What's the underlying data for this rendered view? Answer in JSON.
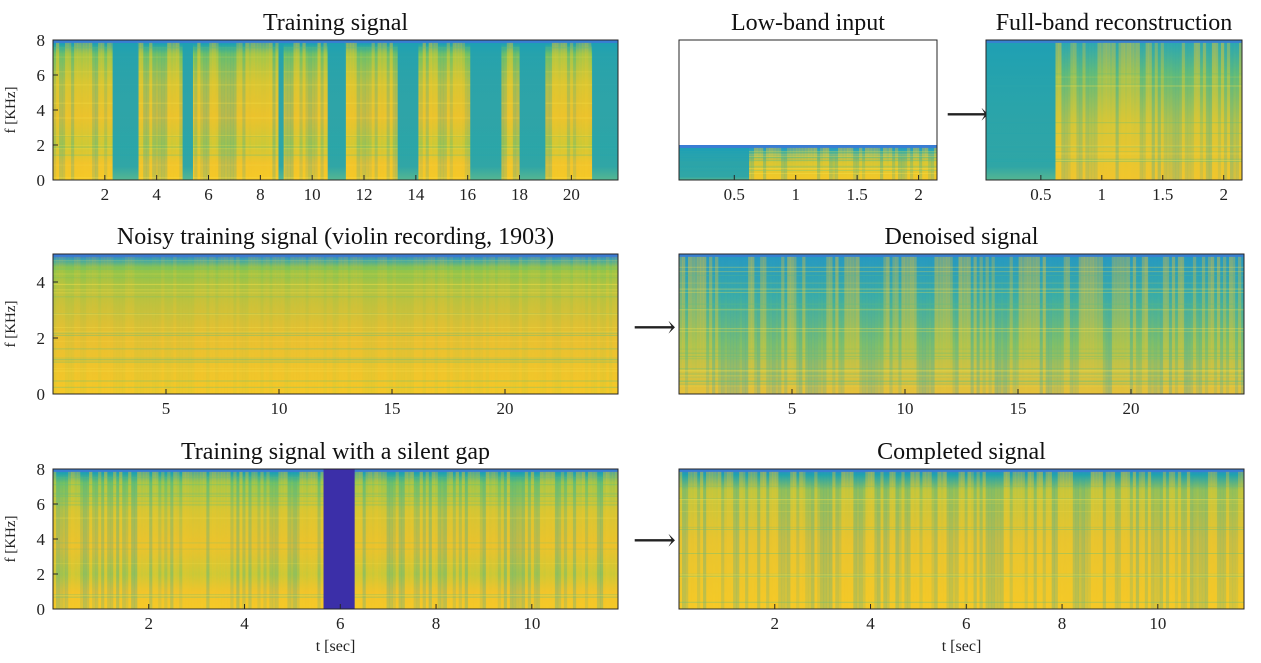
{
  "colors": {
    "background": "#ffffff",
    "axis": "#262626",
    "spec_low": "#1fa3b0",
    "spec_mid": "#8cc84a",
    "spec_high": "#f5c927",
    "spec_edge": "#3a7bd5",
    "gap": "#3b2fa8",
    "white": "#ffffff"
  },
  "arrows": {
    "a1": "⟶",
    "a2": "⟶",
    "a3": "⟶"
  },
  "chart_data": [
    {
      "id": "training",
      "type": "heatmap",
      "title": "Training signal",
      "ylabel": "f [KHz]",
      "xlabel": "",
      "xlim": [
        0,
        21.8
      ],
      "ylim": [
        0,
        8
      ],
      "xticks": [
        2,
        4,
        6,
        8,
        10,
        12,
        14,
        16,
        18,
        20
      ],
      "xtick_labels": [
        "2",
        "4",
        "6",
        "8",
        "10",
        "12",
        "14",
        "16",
        "18",
        "20"
      ],
      "yticks": [
        0,
        2,
        4,
        6,
        8
      ],
      "ytick_labels": [
        "0",
        "2",
        "4",
        "6",
        "8"
      ],
      "quiet_intervals_sec": [
        [
          2.3,
          3.3
        ],
        [
          5.0,
          5.4
        ],
        [
          8.7,
          8.9
        ],
        [
          10.6,
          11.3
        ],
        [
          13.3,
          14.1
        ],
        [
          16.1,
          17.3
        ],
        [
          18.0,
          19.0
        ],
        [
          20.8,
          21.8
        ]
      ],
      "max_freq_khz": 8
    },
    {
      "id": "lowband",
      "type": "heatmap",
      "title": "Low-band input",
      "ylabel": "",
      "xlabel": "",
      "xlim": [
        0.05,
        2.15
      ],
      "ylim": [
        0,
        8
      ],
      "xticks": [
        0.5,
        1,
        1.5,
        2
      ],
      "xtick_labels": [
        "0.5",
        "1",
        "1.5",
        "2"
      ],
      "yticks": [],
      "ytick_labels": [],
      "quiet_intervals_sec": [
        [
          0.05,
          0.62
        ]
      ],
      "max_freq_khz": 2
    },
    {
      "id": "fullband",
      "type": "heatmap",
      "title": "Full-band reconstruction",
      "ylabel": "",
      "xlabel": "",
      "xlim": [
        0.05,
        2.15
      ],
      "ylim": [
        0,
        8
      ],
      "xticks": [
        0.5,
        1,
        1.5,
        2
      ],
      "xtick_labels": [
        "0.5",
        "1",
        "1.5",
        "2"
      ],
      "yticks": [],
      "ytick_labels": [],
      "quiet_intervals_sec": [
        [
          0.05,
          0.62
        ]
      ],
      "max_freq_khz": 8
    },
    {
      "id": "noisy",
      "type": "heatmap",
      "title": "Noisy training signal (violin recording, 1903)",
      "ylabel": "f [KHz]",
      "xlabel": "",
      "xlim": [
        0,
        25
      ],
      "ylim": [
        0,
        5
      ],
      "xticks": [
        5,
        10,
        15,
        20
      ],
      "xtick_labels": [
        "5",
        "10",
        "15",
        "20"
      ],
      "yticks": [
        0,
        2,
        4
      ],
      "ytick_labels": [
        "0",
        "2",
        "4"
      ],
      "quiet_intervals_sec": [],
      "max_freq_khz": 5
    },
    {
      "id": "denoised",
      "type": "heatmap",
      "title": "Denoised signal",
      "ylabel": "",
      "xlabel": "",
      "xlim": [
        0,
        25
      ],
      "ylim": [
        0,
        5
      ],
      "xticks": [
        5,
        10,
        15,
        20
      ],
      "xtick_labels": [
        "5",
        "10",
        "15",
        "20"
      ],
      "yticks": [],
      "ytick_labels": [],
      "quiet_intervals_sec": [],
      "max_freq_khz": 5
    },
    {
      "id": "gap",
      "type": "heatmap",
      "title": "Training signal with a silent gap",
      "ylabel": "f [KHz]",
      "xlabel": "t [sec]",
      "xlim": [
        0,
        11.8
      ],
      "ylim": [
        0,
        8
      ],
      "xticks": [
        2,
        4,
        6,
        8,
        10
      ],
      "xtick_labels": [
        "2",
        "4",
        "6",
        "8",
        "10"
      ],
      "yticks": [
        0,
        2,
        4,
        6,
        8
      ],
      "ytick_labels": [
        "0",
        "2",
        "4",
        "6",
        "8"
      ],
      "gap_interval_sec": [
        5.65,
        6.3
      ],
      "quiet_intervals_sec": [],
      "max_freq_khz": 8
    },
    {
      "id": "completed",
      "type": "heatmap",
      "title": "Completed signal",
      "ylabel": "",
      "xlabel": "t [sec]",
      "xlim": [
        0,
        11.8
      ],
      "ylim": [
        0,
        8
      ],
      "xticks": [
        2,
        4,
        6,
        8,
        10
      ],
      "xtick_labels": [
        "2",
        "4",
        "6",
        "8",
        "10"
      ],
      "yticks": [],
      "ytick_labels": [],
      "quiet_intervals_sec": [],
      "max_freq_khz": 8
    }
  ]
}
